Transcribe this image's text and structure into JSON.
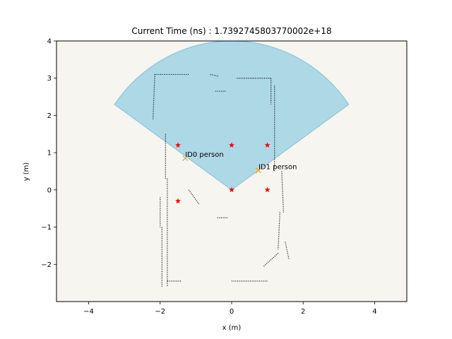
{
  "chart_data": {
    "type": "scatter",
    "title": "Current Time (ns) : 1.7392745803770002e+18",
    "xlabel": "x (m)",
    "ylabel": "y (m)",
    "xlim": [
      -4.9,
      4.9
    ],
    "ylim": [
      -3.0,
      4.0
    ],
    "xticks": [
      -4,
      -2,
      0,
      2,
      4
    ],
    "yticks": [
      -2,
      -1,
      0,
      1,
      2,
      3,
      4
    ],
    "xtick_labels": [
      "−4",
      "−2",
      "0",
      "2",
      "4"
    ],
    "ytick_labels": [
      "−2",
      "−1",
      "0",
      "1",
      "2",
      "3",
      "4"
    ],
    "grid": false,
    "background_color": "#f7f5ef",
    "sensor_fov": {
      "origin": [
        0,
        0
      ],
      "radius": 4.0,
      "start_angle_deg": 35,
      "end_angle_deg": 145,
      "fill_color": "#add8e6",
      "edge_color": "#87bfdc"
    },
    "markers": {
      "color": "#ff0000",
      "symbol": "star",
      "points": [
        [
          -1.5,
          1.2
        ],
        [
          0.0,
          1.2
        ],
        [
          1.0,
          1.2
        ],
        [
          -1.5,
          -0.3
        ],
        [
          0.0,
          0.0
        ],
        [
          1.0,
          0.0
        ]
      ]
    },
    "detections": [
      {
        "id": "ID0",
        "label": "ID0 person",
        "x": -1.3,
        "y": 0.85,
        "color": "#bdb76b"
      },
      {
        "id": "ID1",
        "label": "ID1 person",
        "x": 0.75,
        "y": 0.52,
        "color": "#ffa500"
      }
    ],
    "occupancy_points": {
      "color": "#000000",
      "segments": [
        [
          [
            -2.15,
            3.1
          ],
          [
            -1.2,
            3.1
          ]
        ],
        [
          [
            -0.6,
            3.1
          ],
          [
            -0.35,
            3.05
          ]
        ],
        [
          [
            -0.45,
            2.65
          ],
          [
            -0.15,
            2.65
          ]
        ],
        [
          [
            0.15,
            3.0
          ],
          [
            0.6,
            3.0
          ]
        ],
        [
          [
            0.6,
            3.0
          ],
          [
            1.1,
            3.0
          ]
        ],
        [
          [
            -2.15,
            3.1
          ],
          [
            -2.2,
            1.9
          ]
        ],
        [
          [
            1.1,
            3.0
          ],
          [
            1.1,
            2.3
          ]
        ],
        [
          [
            -1.85,
            1.5
          ],
          [
            -1.85,
            0.3
          ]
        ],
        [
          [
            -1.8,
            0.3
          ],
          [
            -1.8,
            -2.6
          ]
        ],
        [
          [
            -2.0,
            -0.2
          ],
          [
            -2.0,
            -1.0
          ]
        ],
        [
          [
            -1.95,
            -1.0
          ],
          [
            -1.95,
            -2.6
          ]
        ],
        [
          [
            -1.8,
            -2.45
          ],
          [
            -1.4,
            -2.45
          ]
        ],
        [
          [
            -1.2,
            0.0
          ],
          [
            -0.9,
            -0.4
          ]
        ],
        [
          [
            -0.4,
            -0.75
          ],
          [
            -0.1,
            -0.75
          ]
        ],
        [
          [
            0.0,
            -2.45
          ],
          [
            1.0,
            -2.45
          ]
        ],
        [
          [
            1.2,
            2.8
          ],
          [
            1.2,
            0.5
          ]
        ],
        [
          [
            1.4,
            0.5
          ],
          [
            1.45,
            -0.6
          ]
        ],
        [
          [
            1.35,
            -0.6
          ],
          [
            1.3,
            -1.6
          ]
        ],
        [
          [
            1.5,
            -1.4
          ],
          [
            1.6,
            -1.85
          ]
        ],
        [
          [
            0.9,
            -2.05
          ],
          [
            1.3,
            -1.7
          ]
        ]
      ]
    }
  }
}
